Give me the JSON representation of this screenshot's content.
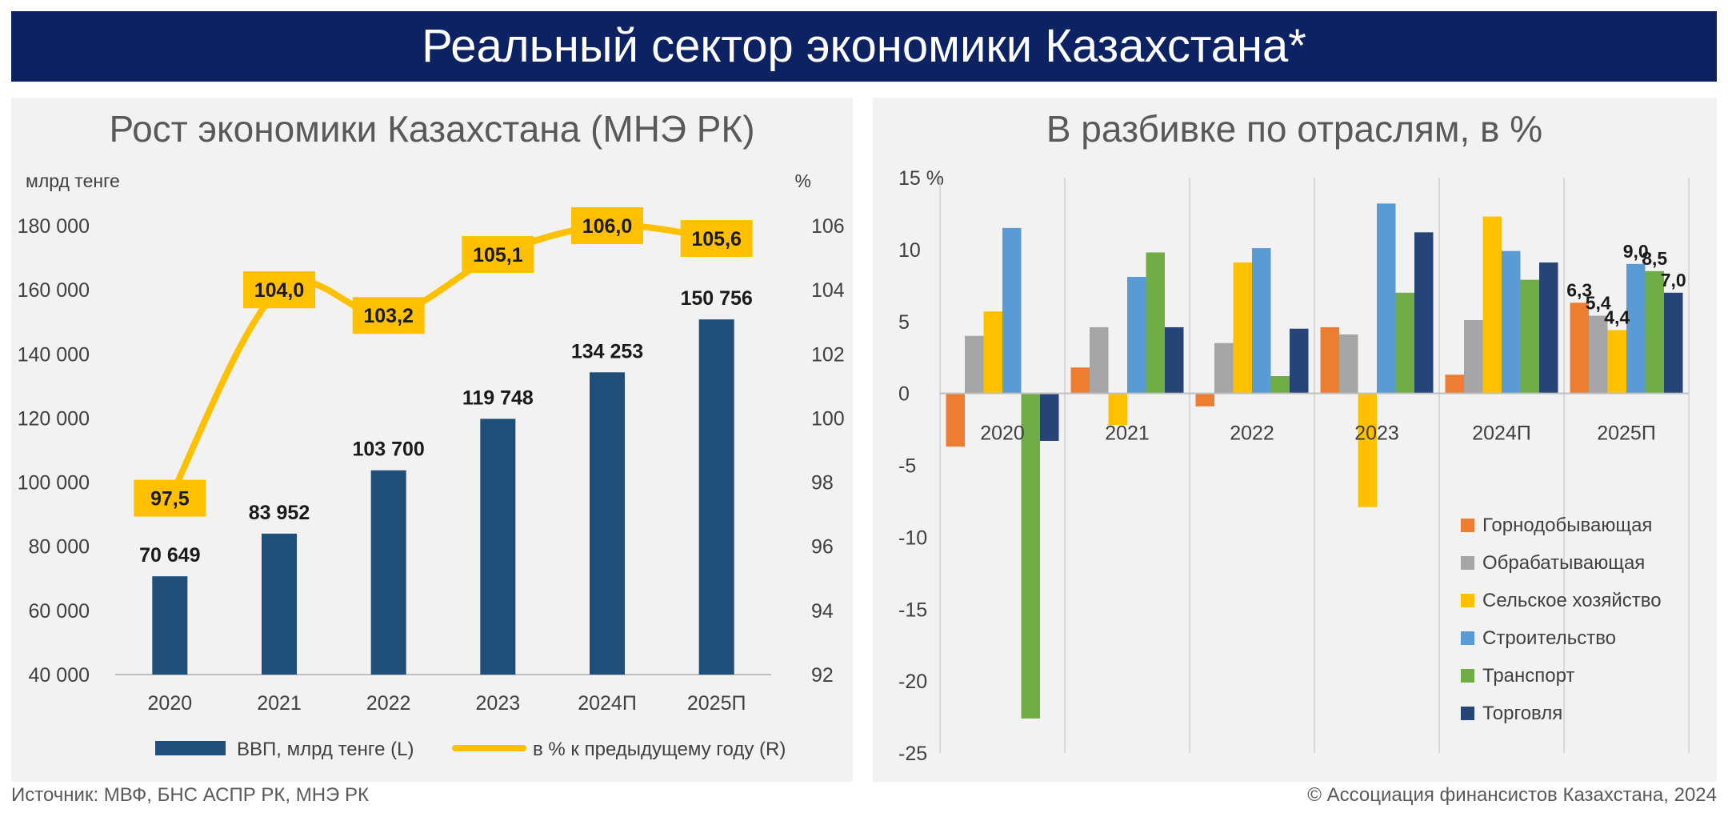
{
  "banner": {
    "title": "Реальный сектор экономики Казахстана*"
  },
  "footer": {
    "source": "Источник: МВФ, БНС АСПР РК, МНЭ РК",
    "copyright": "© Ассоциация финансистов Казахстана, 2024"
  },
  "colors": {
    "banner_bg": "#0d2263",
    "gdp_bar": "#1f4e79",
    "growth_line": "#ffc000",
    "mining": "#ed7d31",
    "manufacturing": "#a5a5a5",
    "agriculture": "#ffc000",
    "construction": "#5b9bd5",
    "transport": "#70ad47",
    "trade": "#264478"
  },
  "chart_data": [
    {
      "type": "bar",
      "title": "Рост экономики Казахстана (МНЭ РК)",
      "ylabel_left": "млрд тенге",
      "ylabel_right": "%",
      "categories": [
        "2020",
        "2021",
        "2022",
        "2023",
        "2024П",
        "2025П"
      ],
      "ylim_left": [
        40000,
        180000
      ],
      "yticks_left": [
        "40 000",
        "60 000",
        "80 000",
        "100 000",
        "120 000",
        "140 000",
        "160 000",
        "180 000"
      ],
      "ylim_right": [
        92,
        106
      ],
      "yticks_right": [
        "92",
        "94",
        "96",
        "98",
        "100",
        "102",
        "104",
        "106"
      ],
      "legend_position": "bottom",
      "series": [
        {
          "name": "ВВП, млрд тенге (L)",
          "type": "bar",
          "axis": "left",
          "values": [
            70649,
            83952,
            103700,
            119748,
            134253,
            150756
          ],
          "labels": [
            "70 649",
            "83 952",
            "103 700",
            "119 748",
            "134 253",
            "150 756"
          ]
        },
        {
          "name": "в % к предыдущему году (R)",
          "type": "line",
          "axis": "right",
          "values": [
            97.5,
            104.0,
            103.2,
            105.1,
            106.0,
            105.6
          ],
          "labels": [
            "97,5",
            "104,0",
            "103,2",
            "105,1",
            "106,0",
            "105,6"
          ]
        }
      ]
    },
    {
      "type": "bar",
      "title": "В разбивке по отраслям, в %",
      "ylim": [
        -25,
        15
      ],
      "yticks": [
        "-25",
        "-20",
        "-15",
        "-10",
        "-5",
        "0",
        "5",
        "10",
        "15 %"
      ],
      "categories": [
        "2020",
        "2021",
        "2022",
        "2023",
        "2024П",
        "2025П"
      ],
      "legend_position": "bottom-right",
      "grid": "vertical category separators",
      "series": [
        {
          "name": "Горнодобывающая",
          "values": [
            -3.7,
            1.8,
            -0.9,
            4.6,
            1.3,
            6.3
          ]
        },
        {
          "name": "Обрабатывающая",
          "values": [
            4.0,
            4.6,
            3.5,
            4.1,
            5.1,
            5.4
          ]
        },
        {
          "name": "Сельское хозяйство",
          "values": [
            5.7,
            -2.2,
            9.1,
            -7.9,
            12.3,
            4.4
          ]
        },
        {
          "name": "Строительство",
          "values": [
            11.5,
            8.1,
            10.1,
            13.2,
            9.9,
            9.0
          ]
        },
        {
          "name": "Транспорт",
          "values": [
            -22.6,
            9.8,
            1.2,
            7.0,
            7.9,
            8.5
          ]
        },
        {
          "name": "Торговля",
          "values": [
            -3.3,
            4.6,
            4.5,
            11.2,
            9.1,
            7.0
          ]
        }
      ],
      "data_labels": {
        "category": "2025П",
        "labels": [
          "6,3",
          "5,4",
          "4,4",
          "9,0",
          "8,5",
          "7,0"
        ]
      }
    }
  ]
}
